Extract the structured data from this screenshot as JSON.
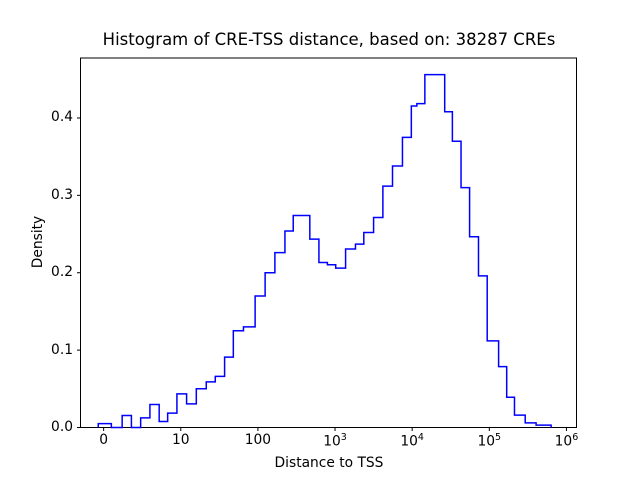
{
  "figure": {
    "background": "#ffffff"
  },
  "chart_data": {
    "type": "step-histogram",
    "title": "Histogram of CRE-TSS distance, based on: 38287 CREs",
    "xlabel": "Distance to TSS",
    "ylabel": "Density",
    "sample_count": "38287",
    "line_color": "#0000ff",
    "axis_color": "#000000",
    "x_scale": "symlog",
    "linthresh": 10,
    "xlim": [
      -3,
      1350000
    ],
    "ylim": [
      0,
      0.4775
    ],
    "grid": false,
    "legend": null,
    "bin_edges": [
      -0.7,
      1.0,
      2.4,
      3.6,
      4.8,
      6.0,
      7.2,
      8.3,
      9.5,
      11.9,
      15.9,
      21.4,
      28,
      37,
      48,
      65,
      92,
      124,
      166,
      224,
      287,
      366,
      471,
      618,
      796,
      1020,
      1370,
      1840,
      2360,
      3160,
      4170,
      5560,
      7480,
      9750,
      11500,
      14600,
      19600,
      26400,
      33200,
      43000,
      55500,
      72400,
      93900,
      132000,
      168000,
      212000,
      292000,
      404000,
      633000
    ],
    "densities": [
      0.005,
      0.0,
      0.0155,
      0.0,
      0.0125,
      0.0297,
      0.0077,
      0.0185,
      0.0435,
      0.0305,
      0.05,
      0.059,
      0.066,
      0.091,
      0.125,
      0.13,
      0.17,
      0.2,
      0.226,
      0.254,
      0.274,
      0.274,
      0.2435,
      0.2133,
      0.2103,
      0.206,
      0.2306,
      0.237,
      0.252,
      0.2714,
      0.312,
      0.338,
      0.375,
      0.4155,
      0.4185,
      0.456,
      0.456,
      0.408,
      0.37,
      0.31,
      0.2465,
      0.196,
      0.112,
      0.0787,
      0.0391,
      0.016,
      0.006,
      0.003
    ],
    "x_ticks": [
      {
        "v": 0,
        "label": "0"
      },
      {
        "v": 10,
        "label": "10"
      },
      {
        "v": 100,
        "label": "100"
      },
      {
        "v": 1000,
        "base": "10",
        "exp": "3"
      },
      {
        "v": 10000,
        "base": "10",
        "exp": "4"
      },
      {
        "v": 100000,
        "base": "10",
        "exp": "5"
      },
      {
        "v": 1000000,
        "base": "10",
        "exp": "6"
      }
    ],
    "y_ticks": [
      {
        "v": 0.0,
        "label": "0.0"
      },
      {
        "v": 0.1,
        "label": "0.1"
      },
      {
        "v": 0.2,
        "label": "0.2"
      },
      {
        "v": 0.3,
        "label": "0.3"
      },
      {
        "v": 0.4,
        "label": "0.4"
      }
    ]
  }
}
